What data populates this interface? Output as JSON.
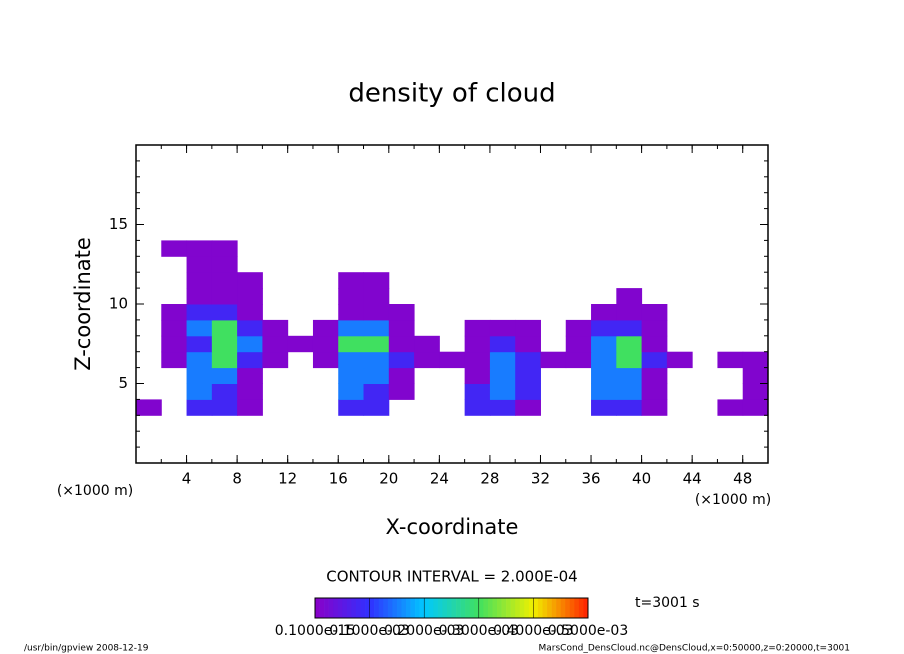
{
  "chart_data": {
    "type": "heatmap",
    "title": "density of cloud",
    "x_label": "X-coordinate",
    "y_label": "Z-coordinate",
    "x_unit": "(×1000 m)",
    "y_unit": "(×1000 m)",
    "xlim": [
      0,
      50
    ],
    "xticks": [
      4,
      8,
      12,
      16,
      20,
      24,
      28,
      32,
      36,
      40,
      44,
      48
    ],
    "ylim": [
      0,
      20
    ],
    "yticks": [
      5,
      10,
      15
    ],
    "x": [
      1,
      3,
      5,
      7,
      9,
      11,
      13,
      15,
      17,
      19,
      21,
      23,
      25,
      27,
      29,
      31,
      33,
      35,
      37,
      39,
      41,
      43,
      45,
      47,
      49
    ],
    "y": [
      3.5,
      4.5,
      5.5,
      6.5,
      7.5,
      8.5,
      9.5,
      10.5,
      11.5,
      12.5,
      13.5
    ],
    "values": [
      [
        1e-05,
        0,
        8e-05,
        8e-05,
        1e-05,
        0,
        0,
        0,
        8e-05,
        8e-05,
        0,
        0,
        0,
        8e-05,
        8e-05,
        1e-05,
        0,
        0,
        8e-05,
        8e-05,
        1e-05,
        0,
        0,
        1e-05,
        1e-05
      ],
      [
        0,
        0,
        0.00015,
        8e-05,
        1e-05,
        0,
        0,
        0,
        0.00015,
        8e-05,
        1e-05,
        0,
        0,
        8e-05,
        0.00015,
        8e-05,
        0,
        0,
        0.00015,
        0.00015,
        1e-05,
        0,
        0,
        0,
        1e-05
      ],
      [
        0,
        0,
        0.00015,
        0.00015,
        1e-05,
        0,
        0,
        0,
        0.00015,
        0.00015,
        1e-05,
        0,
        0,
        1e-05,
        0.00015,
        8e-05,
        0,
        0,
        0.00015,
        0.00015,
        1e-05,
        0,
        0,
        0,
        1e-05
      ],
      [
        0,
        1e-05,
        0.00015,
        0.0003,
        8e-05,
        1e-05,
        0,
        1e-05,
        0.00015,
        0.00015,
        8e-05,
        1e-05,
        1e-05,
        1e-05,
        0.00015,
        8e-05,
        1e-05,
        1e-05,
        0.00015,
        0.0003,
        8e-05,
        1e-05,
        0,
        1e-05,
        1e-05
      ],
      [
        0,
        1e-05,
        8e-05,
        0.0003,
        0.00015,
        1e-05,
        1e-05,
        1e-05,
        0.0003,
        0.0003,
        1e-05,
        1e-05,
        0,
        1e-05,
        8e-05,
        1e-05,
        0,
        1e-05,
        0.00015,
        0.0003,
        1e-05,
        0,
        0,
        0,
        0
      ],
      [
        0,
        1e-05,
        0.00015,
        0.0003,
        8e-05,
        1e-05,
        0,
        1e-05,
        0.00015,
        0.00015,
        1e-05,
        0,
        0,
        1e-05,
        1e-05,
        1e-05,
        0,
        1e-05,
        8e-05,
        8e-05,
        1e-05,
        0,
        0,
        0,
        0
      ],
      [
        0,
        1e-05,
        8e-05,
        8e-05,
        1e-05,
        0,
        0,
        0,
        1e-05,
        1e-05,
        1e-05,
        0,
        0,
        0,
        0,
        0,
        0,
        0,
        1e-05,
        1e-05,
        1e-05,
        0,
        0,
        0,
        0
      ],
      [
        0,
        0,
        1e-05,
        1e-05,
        1e-05,
        0,
        0,
        0,
        1e-05,
        1e-05,
        0,
        0,
        0,
        0,
        0,
        0,
        0,
        0,
        0,
        1e-05,
        0,
        0,
        0,
        0,
        0
      ],
      [
        0,
        0,
        1e-05,
        1e-05,
        1e-05,
        0,
        0,
        0,
        1e-05,
        1e-05,
        0,
        0,
        0,
        0,
        0,
        0,
        0,
        0,
        0,
        0,
        0,
        0,
        0,
        0,
        0
      ],
      [
        0,
        0,
        1e-05,
        1e-05,
        0,
        0,
        0,
        0,
        0,
        0,
        0,
        0,
        0,
        0,
        0,
        0,
        0,
        0,
        0,
        0,
        0,
        0,
        0,
        0,
        0
      ],
      [
        0,
        1e-05,
        1e-05,
        1e-05,
        0,
        0,
        0,
        0,
        0,
        0,
        0,
        0,
        0,
        0,
        0,
        0,
        0,
        0,
        0,
        0,
        0,
        0,
        0,
        0,
        0
      ]
    ],
    "colormap": [
      "#8a00c8",
      "#3030ff",
      "#00c8ff",
      "#40e060",
      "#f0f000",
      "#ff2000"
    ],
    "clim": [
      0,
      0.0005
    ],
    "colorbar_ticks": [
      {
        "value": 1e-16,
        "label": "0.1000e-15"
      },
      {
        "value": 0.0001,
        "label": "0.1000e-03"
      },
      {
        "value": 0.0002,
        "label": "0.2000e-03"
      },
      {
        "value": 0.0003,
        "label": "0.3000e-03"
      },
      {
        "value": 0.0004,
        "label": "0.4000e-03"
      },
      {
        "value": 0.0005,
        "label": "0.5000e-03"
      }
    ],
    "contour_note": "CONTOUR INTERVAL = 2.000E-04",
    "time_note": "t=3001 s",
    "footer_left": "/usr/bin/gpview  2008-12-19",
    "footer_right": "MarsCond_DensCloud.nc@DensCloud,x=0:50000,z=0:20000,t=3001"
  }
}
